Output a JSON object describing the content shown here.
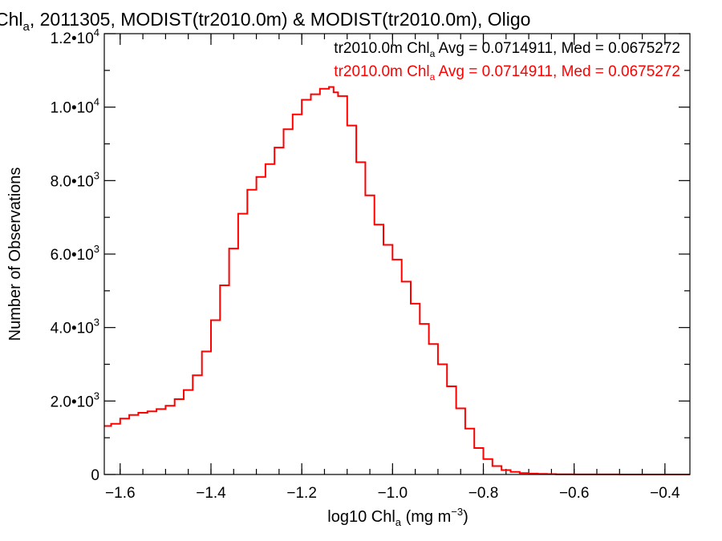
{
  "chart_data": {
    "type": "line",
    "title": {
      "prefix": "Chl",
      "prefix_sub": "a",
      "rest": ", 2011305, MODIST(tr2010.0m) & MODIST(tr2010.0m), Oligo"
    },
    "xlabel": {
      "pre": "log10 Chl",
      "sub": "a",
      "mid": " (mg m",
      "sup": "−3",
      "post": ")"
    },
    "ylabel": "Number of Observations",
    "xlim": [
      -1.635,
      -0.345
    ],
    "ylim": [
      0,
      12000
    ],
    "x_ticks": [
      {
        "v": -1.6,
        "label": "−1.6"
      },
      {
        "v": -1.4,
        "label": "−1.4"
      },
      {
        "v": -1.2,
        "label": "−1.2"
      },
      {
        "v": -1.0,
        "label": "−1.0"
      },
      {
        "v": -0.8,
        "label": "−0.8"
      },
      {
        "v": -0.6,
        "label": "−0.6"
      },
      {
        "v": -0.4,
        "label": "−0.4"
      }
    ],
    "y_ticks": [
      {
        "v": 0,
        "mant": "0",
        "exp": ""
      },
      {
        "v": 2000,
        "mant": "2.0•10",
        "exp": "3"
      },
      {
        "v": 4000,
        "mant": "4.0•10",
        "exp": "3"
      },
      {
        "v": 6000,
        "mant": "6.0•10",
        "exp": "3"
      },
      {
        "v": 8000,
        "mant": "8.0•10",
        "exp": "3"
      },
      {
        "v": 10000,
        "mant": "1.0•10",
        "exp": "4"
      },
      {
        "v": 12000,
        "mant": "1.2•10",
        "exp": "4"
      }
    ],
    "legend": {
      "placement": "top-right",
      "entries": [
        {
          "pre": "tr2010.0m Chl",
          "sub": "a",
          "post": " Avg = 0.0714911, Med = 0.0675272",
          "color": "#000000"
        },
        {
          "pre": "tr2010.0m Chl",
          "sub": "a",
          "post": " Avg = 0.0714911, Med = 0.0675272",
          "color": "#ff0000"
        }
      ]
    },
    "series": [
      {
        "color": "#ff0000",
        "x": [
          -1.635,
          -1.62,
          -1.6,
          -1.58,
          -1.56,
          -1.54,
          -1.52,
          -1.5,
          -1.48,
          -1.46,
          -1.44,
          -1.42,
          -1.4,
          -1.38,
          -1.36,
          -1.34,
          -1.32,
          -1.3,
          -1.28,
          -1.26,
          -1.24,
          -1.22,
          -1.2,
          -1.18,
          -1.16,
          -1.14,
          -1.13,
          -1.12,
          -1.1,
          -1.08,
          -1.06,
          -1.04,
          -1.02,
          -1.0,
          -0.98,
          -0.96,
          -0.94,
          -0.92,
          -0.9,
          -0.88,
          -0.86,
          -0.84,
          -0.82,
          -0.8,
          -0.78,
          -0.76,
          -0.74,
          -0.72,
          -0.7,
          -0.68,
          -0.66,
          -0.64,
          -0.62,
          -0.6,
          -0.55,
          -0.5,
          -0.45,
          -0.4,
          -0.345
        ],
        "y": [
          1320,
          1380,
          1520,
          1620,
          1680,
          1720,
          1780,
          1870,
          2050,
          2300,
          2700,
          3350,
          4200,
          5150,
          6150,
          7100,
          7750,
          8100,
          8450,
          8900,
          9400,
          9800,
          10200,
          10350,
          10500,
          10550,
          10400,
          10300,
          9500,
          8500,
          7600,
          6800,
          6250,
          5850,
          5250,
          4650,
          4100,
          3550,
          3000,
          2400,
          1800,
          1250,
          720,
          420,
          230,
          120,
          70,
          40,
          25,
          15,
          10,
          6,
          4,
          3,
          2,
          1,
          1,
          0,
          0
        ]
      }
    ]
  }
}
